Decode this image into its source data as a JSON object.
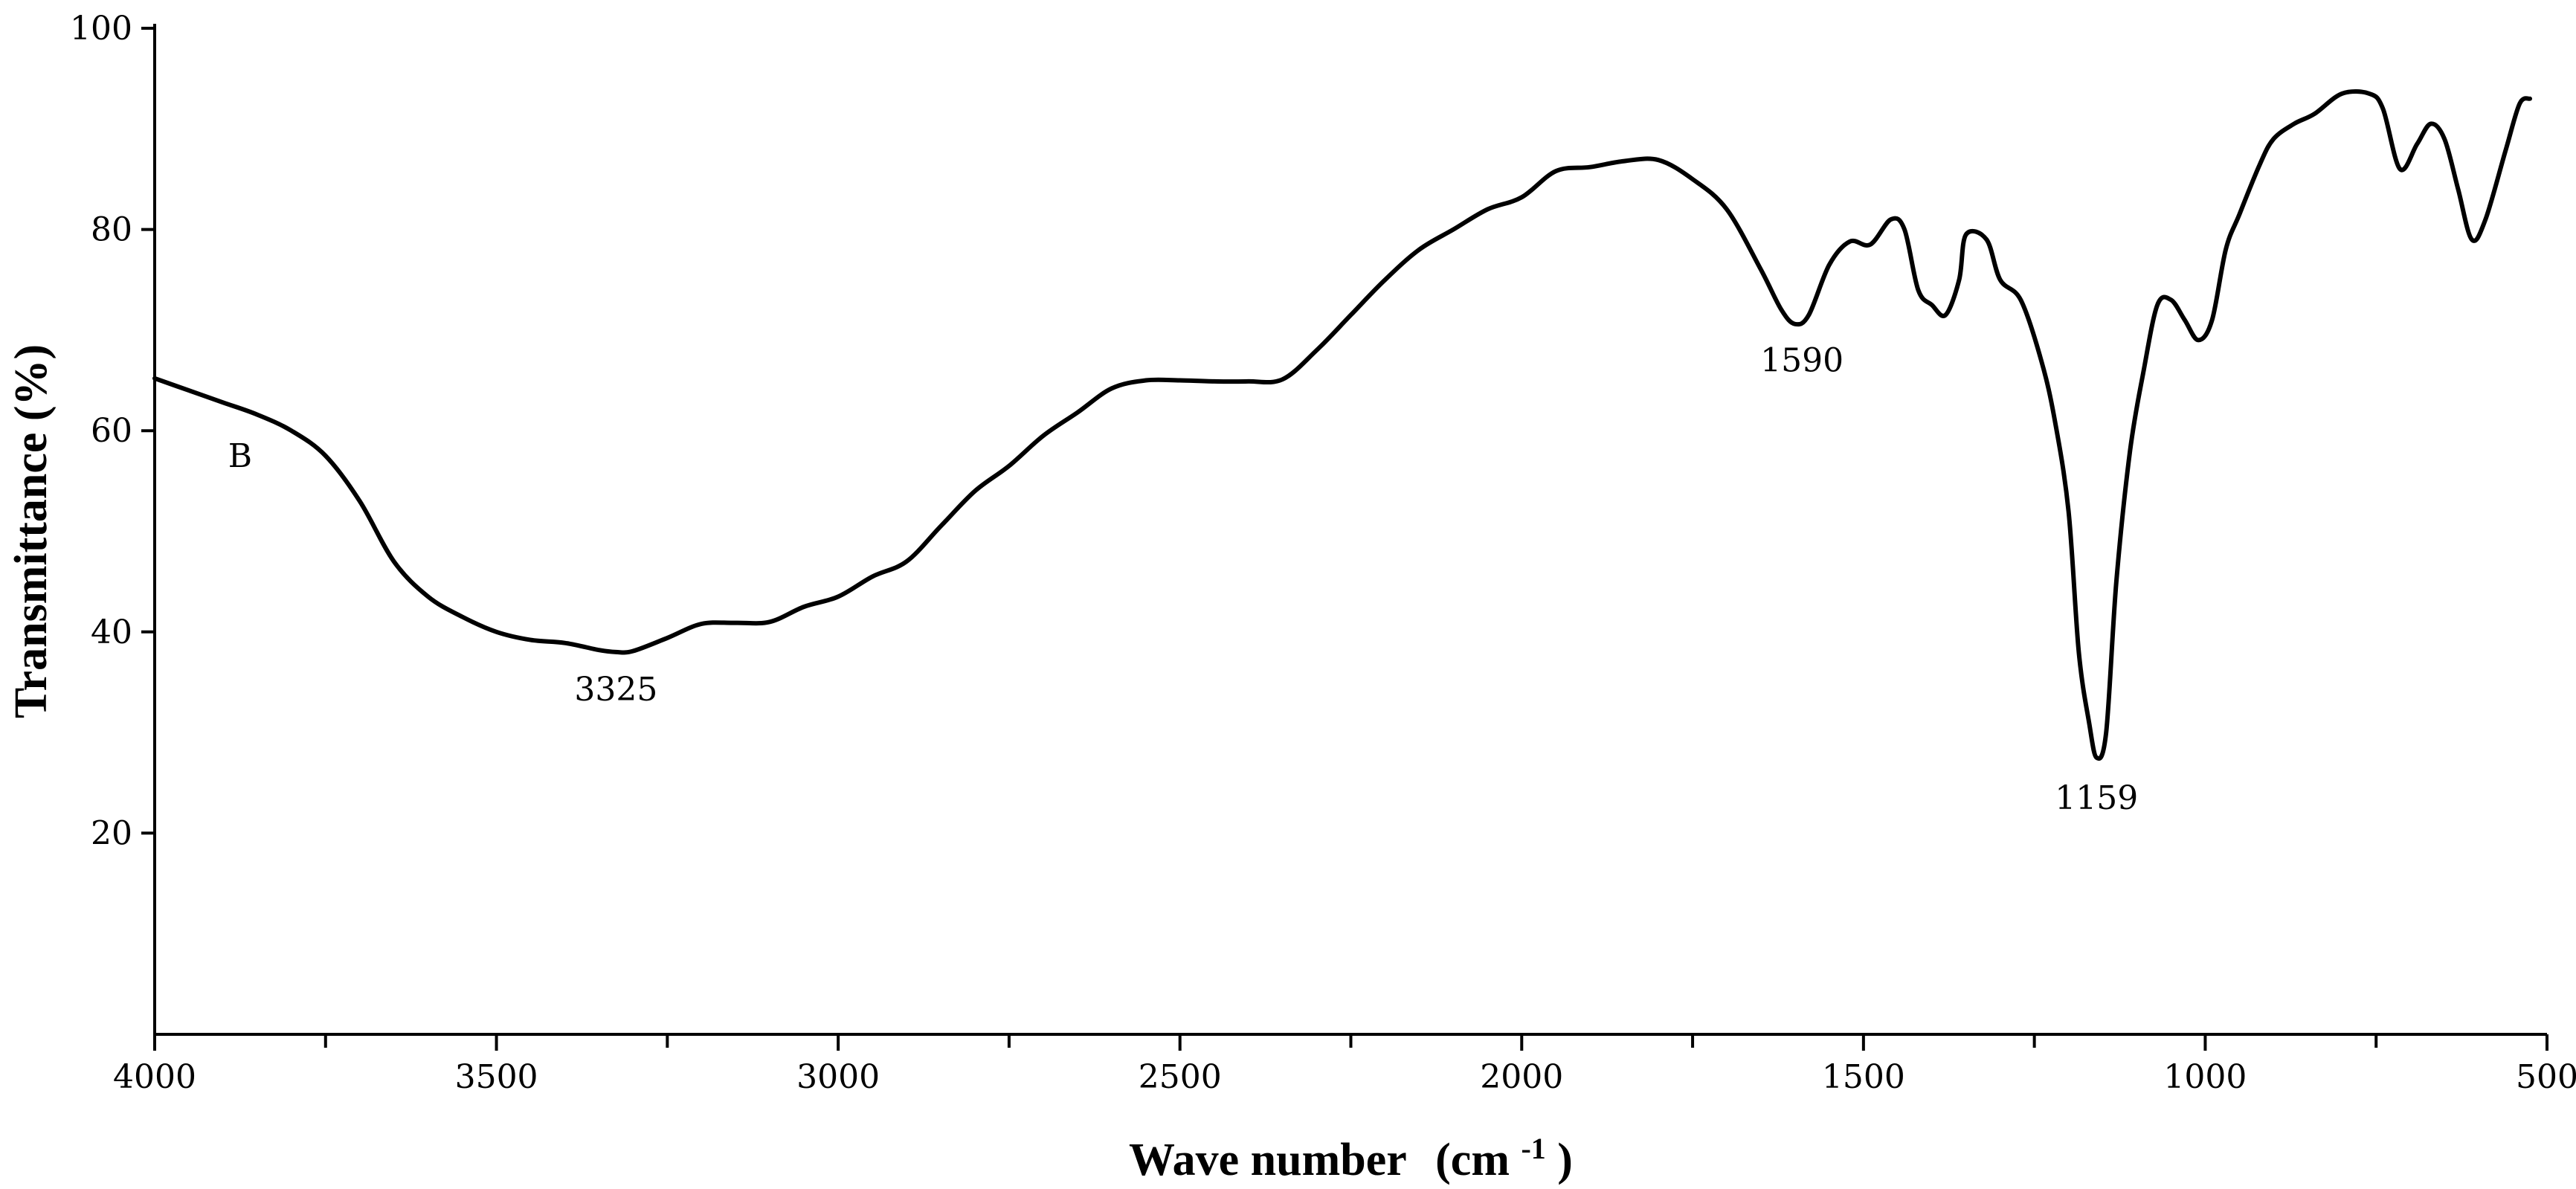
{
  "chart_data": {
    "type": "line",
    "xlabel": "Wave number",
    "xlabel_unit": "(cm",
    "xlabel_sup": "-1",
    "xlabel_close": ")",
    "ylabel": "Transmittance  (%)",
    "xlim": [
      4000,
      500
    ],
    "x_reversed": true,
    "ylim": [
      0,
      100
    ],
    "x_ticks": [
      4000,
      3500,
      3000,
      2500,
      2000,
      1500,
      1000,
      500
    ],
    "x_tick_labels": [
      "4000",
      "3500",
      "3000",
      "2500",
      "2000",
      "1500",
      "1000",
      "500"
    ],
    "x_minor_ticks": [
      3750,
      3250,
      2750,
      2250,
      1750,
      1250,
      750
    ],
    "y_ticks": [
      20,
      40,
      60,
      80,
      100
    ],
    "y_tick_labels": [
      "20",
      "40",
      "60",
      "80",
      "100"
    ],
    "grid": false,
    "legend": "none",
    "series": [
      {
        "points": [
          [
            4000,
            65.2
          ],
          [
            3950,
            64.0
          ],
          [
            3900,
            62.8
          ],
          [
            3850,
            61.6
          ],
          [
            3800,
            60.0
          ],
          [
            3750,
            57.5
          ],
          [
            3700,
            53.0
          ],
          [
            3650,
            47.0
          ],
          [
            3600,
            43.5
          ],
          [
            3550,
            41.5
          ],
          [
            3500,
            40.0
          ],
          [
            3450,
            39.2
          ],
          [
            3400,
            38.9
          ],
          [
            3350,
            38.2
          ],
          [
            3325,
            38.0
          ],
          [
            3300,
            38.1
          ],
          [
            3250,
            39.4
          ],
          [
            3200,
            40.8
          ],
          [
            3150,
            40.9
          ],
          [
            3100,
            41.0
          ],
          [
            3050,
            42.5
          ],
          [
            3000,
            43.5
          ],
          [
            2950,
            45.5
          ],
          [
            2900,
            47.0
          ],
          [
            2850,
            50.5
          ],
          [
            2800,
            54.0
          ],
          [
            2750,
            56.5
          ],
          [
            2700,
            59.5
          ],
          [
            2650,
            61.8
          ],
          [
            2600,
            64.2
          ],
          [
            2550,
            65.0
          ],
          [
            2500,
            65.0
          ],
          [
            2450,
            64.9
          ],
          [
            2400,
            64.9
          ],
          [
            2350,
            65.1
          ],
          [
            2300,
            68.0
          ],
          [
            2250,
            71.5
          ],
          [
            2200,
            75.0
          ],
          [
            2150,
            78.0
          ],
          [
            2100,
            80.0
          ],
          [
            2050,
            82.0
          ],
          [
            2000,
            83.2
          ],
          [
            1950,
            85.8
          ],
          [
            1900,
            86.2
          ],
          [
            1850,
            86.8
          ],
          [
            1800,
            86.9
          ],
          [
            1750,
            85.0
          ],
          [
            1700,
            82.0
          ],
          [
            1650,
            76.0
          ],
          [
            1620,
            72.0
          ],
          [
            1600,
            70.6
          ],
          [
            1580,
            71.5
          ],
          [
            1550,
            76.5
          ],
          [
            1520,
            78.8
          ],
          [
            1490,
            78.5
          ],
          [
            1460,
            81.0
          ],
          [
            1440,
            80.0
          ],
          [
            1420,
            74.0
          ],
          [
            1400,
            72.5
          ],
          [
            1380,
            71.5
          ],
          [
            1360,
            75.0
          ],
          [
            1350,
            79.5
          ],
          [
            1320,
            79.0
          ],
          [
            1300,
            75.0
          ],
          [
            1270,
            73.0
          ],
          [
            1240,
            67.0
          ],
          [
            1220,
            61.0
          ],
          [
            1200,
            52.0
          ],
          [
            1185,
            38.0
          ],
          [
            1170,
            31.0
          ],
          [
            1159,
            27.5
          ],
          [
            1145,
            30.0
          ],
          [
            1130,
            45.0
          ],
          [
            1110,
            58.0
          ],
          [
            1090,
            66.0
          ],
          [
            1070,
            72.5
          ],
          [
            1050,
            73.0
          ],
          [
            1030,
            71.0
          ],
          [
            1010,
            69.0
          ],
          [
            990,
            71.0
          ],
          [
            970,
            78.0
          ],
          [
            950,
            81.5
          ],
          [
            920,
            86.5
          ],
          [
            900,
            89.0
          ],
          [
            870,
            90.5
          ],
          [
            840,
            91.5
          ],
          [
            800,
            93.5
          ],
          [
            760,
            93.5
          ],
          [
            740,
            92.0
          ],
          [
            715,
            86.0
          ],
          [
            690,
            88.5
          ],
          [
            670,
            90.5
          ],
          [
            650,
            89.0
          ],
          [
            630,
            84.0
          ],
          [
            610,
            79.0
          ],
          [
            590,
            81.0
          ],
          [
            560,
            88.0
          ],
          [
            540,
            92.5
          ],
          [
            525,
            93.0
          ]
        ]
      }
    ],
    "annotations": [
      {
        "text": "B",
        "x": 3875,
        "y": 57.5
      },
      {
        "text": "3325",
        "x": 3325,
        "y": 34.3
      },
      {
        "text": "1590",
        "x": 1590,
        "y": 67.0
      },
      {
        "text": "1159",
        "x": 1159,
        "y": 23.5
      }
    ]
  }
}
